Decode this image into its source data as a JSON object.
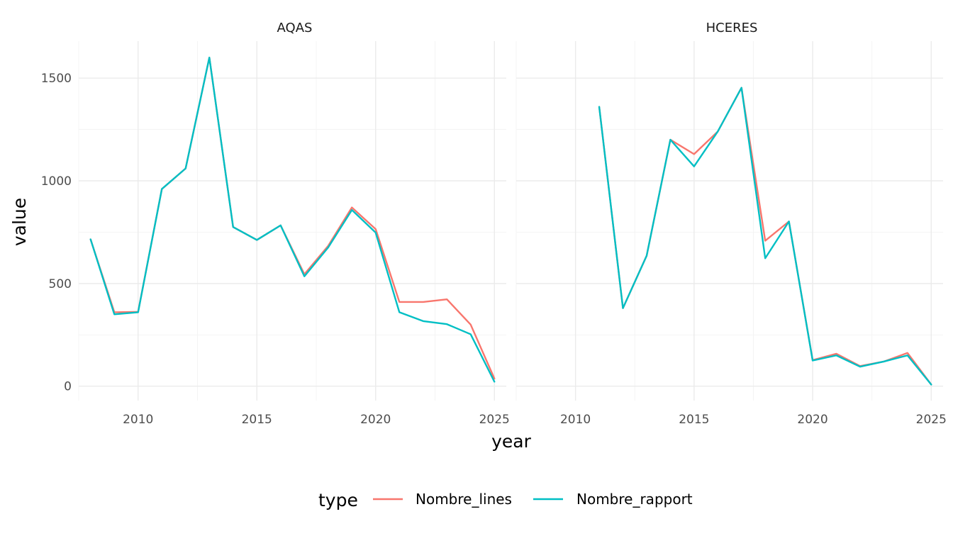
{
  "chart_data": {
    "type": "line",
    "xlabel": "year",
    "ylabel": "value",
    "xlim": [
      2007.5,
      2025.5
    ],
    "ylim": [
      -70,
      1680
    ],
    "x_ticks": [
      2010,
      2015,
      2020,
      2025
    ],
    "x_tick_labels": [
      "2010",
      "2015",
      "2020",
      "2025"
    ],
    "y_ticks": [
      0,
      500,
      1000,
      1500
    ],
    "y_tick_labels": [
      "0",
      "500",
      "1000",
      "1500"
    ],
    "grid": true,
    "legend": {
      "title": "type",
      "position": "bottom",
      "entries": [
        "Nombre_lines",
        "Nombre_rapport"
      ]
    },
    "colors": {
      "Nombre_lines": "#F8766D",
      "Nombre_rapport": "#00BFC4"
    },
    "panels": [
      {
        "label": "AQAS",
        "series": [
          {
            "name": "Nombre_lines",
            "x": [
              2008,
              2009,
              2010,
              2011,
              2012,
              2013,
              2014,
              2015,
              2016,
              2017,
              2018,
              2019,
              2020,
              2021,
              2022,
              2023,
              2024,
              2025
            ],
            "values": [
              715,
              360,
              362,
              960,
              1060,
              1600,
              775,
              712,
              783,
              545,
              683,
              870,
              765,
              410,
              410,
              423,
              300,
              37
            ]
          },
          {
            "name": "Nombre_rapport",
            "x": [
              2008,
              2009,
              2010,
              2011,
              2012,
              2013,
              2014,
              2015,
              2016,
              2017,
              2018,
              2019,
              2020,
              2021,
              2022,
              2023,
              2024,
              2025
            ],
            "values": [
              715,
              350,
              360,
              960,
              1060,
              1600,
              775,
              712,
              783,
              535,
              675,
              858,
              748,
              360,
              317,
              302,
              253,
              22
            ]
          }
        ]
      },
      {
        "label": "HCERES",
        "series": [
          {
            "name": "Nombre_lines",
            "x": [
              2011,
              2012,
              2013,
              2014,
              2015,
              2016,
              2017,
              2018,
              2019,
              2020,
              2021,
              2022,
              2023,
              2024,
              2025
            ],
            "values": [
              1360,
              380,
              635,
              1200,
              1130,
              1240,
              1453,
              708,
              802,
              127,
              158,
              98,
              120,
              162,
              8
            ]
          },
          {
            "name": "Nombre_rapport",
            "x": [
              2011,
              2012,
              2013,
              2014,
              2015,
              2016,
              2017,
              2018,
              2019,
              2020,
              2021,
              2022,
              2023,
              2024,
              2025
            ],
            "values": [
              1360,
              380,
              635,
              1200,
              1070,
              1240,
              1453,
              623,
              802,
              125,
              150,
              95,
              120,
              150,
              8
            ]
          }
        ]
      }
    ]
  }
}
